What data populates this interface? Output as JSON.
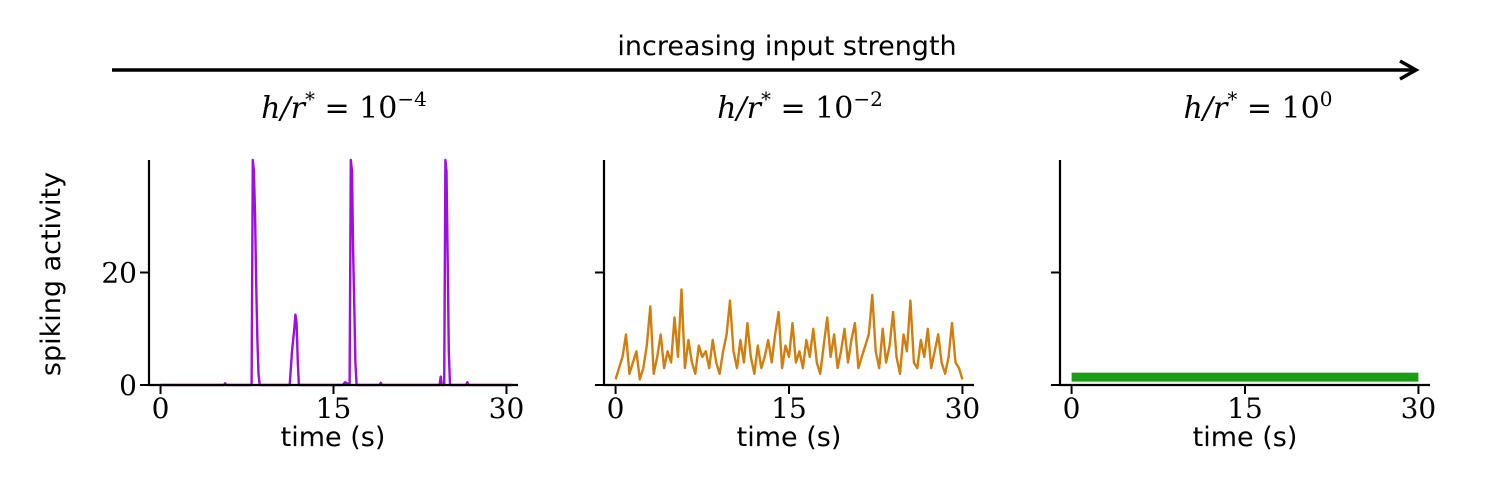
{
  "header": {
    "arrow_label": "increasing input strength"
  },
  "ylabel": "spiking activity",
  "colors": {
    "panel1": "#9b0fe0",
    "panel2": "#d27e0e",
    "panel3": "#1a9c16",
    "axis": "#000000"
  },
  "chart_data": [
    {
      "type": "line",
      "title_base": "h/r",
      "title_sup_star": "*",
      "title_eq": " = 10",
      "title_exponent": "−4",
      "xlabel": "time (s)",
      "ylabel": "spiking activity",
      "xlim": [
        -1,
        31
      ],
      "ylim": [
        0,
        40
      ],
      "xticks": [
        0,
        15,
        30
      ],
      "xtick_labels": [
        "0",
        "15",
        "30"
      ],
      "yticks": [
        0,
        20
      ],
      "ytick_labels": [
        "0",
        "20"
      ],
      "series": [
        {
          "color": "#9b0fe0",
          "x": [
            0,
            5.5,
            5.6,
            5.7,
            7.9,
            8.0,
            8.1,
            8.2,
            8.3,
            8.4,
            8.5,
            8.6,
            11.2,
            11.4,
            11.6,
            11.7,
            11.8,
            11.9,
            12.0,
            15.8,
            16.0,
            16.4,
            16.5,
            16.6,
            16.7,
            16.8,
            16.9,
            17.0,
            19.0,
            19.1,
            19.2,
            24.2,
            24.3,
            24.4,
            24.6,
            24.7,
            24.8,
            24.9,
            25.0,
            25.1,
            26.5,
            26.6,
            26.7,
            30.5
          ],
          "y": [
            0,
            0,
            0.3,
            0,
            0,
            40,
            38,
            30,
            18,
            8,
            2,
            0,
            0,
            6,
            10,
            12.5,
            11,
            4,
            0,
            0,
            0.5,
            0,
            40,
            38,
            24,
            14,
            4,
            0,
            0,
            0.4,
            0,
            0,
            1.5,
            0,
            0,
            40,
            38,
            22,
            6,
            0,
            0,
            0.5,
            0,
            0
          ]
        }
      ]
    },
    {
      "type": "line",
      "title_base": "h/r",
      "title_sup_star": "*",
      "title_eq": " = 10",
      "title_exponent": "−2",
      "xlabel": "time (s)",
      "xlim": [
        -1,
        31
      ],
      "ylim": [
        0,
        40
      ],
      "xticks": [
        0,
        15,
        30
      ],
      "xtick_labels": [
        "0",
        "15",
        "30"
      ],
      "yticks": [
        0,
        20
      ],
      "ytick_labels": [
        "",
        ""
      ],
      "series": [
        {
          "color": "#d27e0e",
          "x": [
            0,
            0.3,
            0.6,
            0.9,
            1.2,
            1.5,
            1.8,
            2.1,
            2.4,
            2.7,
            3.0,
            3.3,
            3.6,
            3.9,
            4.2,
            4.5,
            4.8,
            5.1,
            5.4,
            5.7,
            6.0,
            6.3,
            6.6,
            6.9,
            7.2,
            7.5,
            7.8,
            8.1,
            8.4,
            8.7,
            9.0,
            9.3,
            9.6,
            9.9,
            10.2,
            10.5,
            10.8,
            11.1,
            11.4,
            11.7,
            12.0,
            12.3,
            12.6,
            12.9,
            13.2,
            13.5,
            13.8,
            14.1,
            14.4,
            14.7,
            15.0,
            15.3,
            15.6,
            15.9,
            16.2,
            16.5,
            16.8,
            17.1,
            17.4,
            17.7,
            18.0,
            18.3,
            18.6,
            18.9,
            19.2,
            19.5,
            19.8,
            20.1,
            20.4,
            20.7,
            21.0,
            21.3,
            21.6,
            21.9,
            22.2,
            22.5,
            22.8,
            23.1,
            23.4,
            23.7,
            24.0,
            24.3,
            24.6,
            24.9,
            25.2,
            25.5,
            25.8,
            26.1,
            26.4,
            26.7,
            27.0,
            27.3,
            27.6,
            27.9,
            28.2,
            28.5,
            28.8,
            29.1,
            29.4,
            29.7,
            30.0
          ],
          "y": [
            1,
            3,
            5,
            9,
            2,
            4,
            6,
            1,
            3,
            7,
            14,
            2,
            5,
            9,
            3,
            6,
            4,
            12,
            5,
            17,
            3,
            8,
            4,
            2,
            7,
            5,
            6,
            3,
            8,
            4,
            2,
            6,
            9,
            15,
            6,
            3,
            8,
            4,
            11,
            5,
            2,
            7,
            3,
            5,
            8,
            4,
            9,
            13,
            3,
            7,
            5,
            11,
            4,
            6,
            3,
            8,
            5,
            10,
            4,
            2,
            7,
            12,
            5,
            9,
            3,
            6,
            10,
            4,
            8,
            11,
            3,
            5,
            7,
            9,
            16,
            6,
            3,
            10,
            4,
            7,
            13,
            5,
            2,
            9,
            6,
            15,
            4,
            3,
            8,
            5,
            10,
            3,
            6,
            9,
            4,
            2,
            5,
            11,
            4,
            3,
            1
          ]
        }
      ]
    },
    {
      "type": "line",
      "title_base": "h/r",
      "title_sup_star": "*",
      "title_eq": " = 10",
      "title_exponent": "0",
      "xlabel": "time (s)",
      "xlim": [
        -1,
        31
      ],
      "ylim": [
        0,
        40
      ],
      "xticks": [
        0,
        15,
        30
      ],
      "xtick_labels": [
        "0",
        "15",
        "30"
      ],
      "yticks": [
        0,
        20
      ],
      "ytick_labels": [
        "",
        ""
      ],
      "series": [
        {
          "color": "#1a9c16",
          "x": [
            0,
            30
          ],
          "y": [
            1.4,
            1.4
          ]
        }
      ]
    }
  ]
}
